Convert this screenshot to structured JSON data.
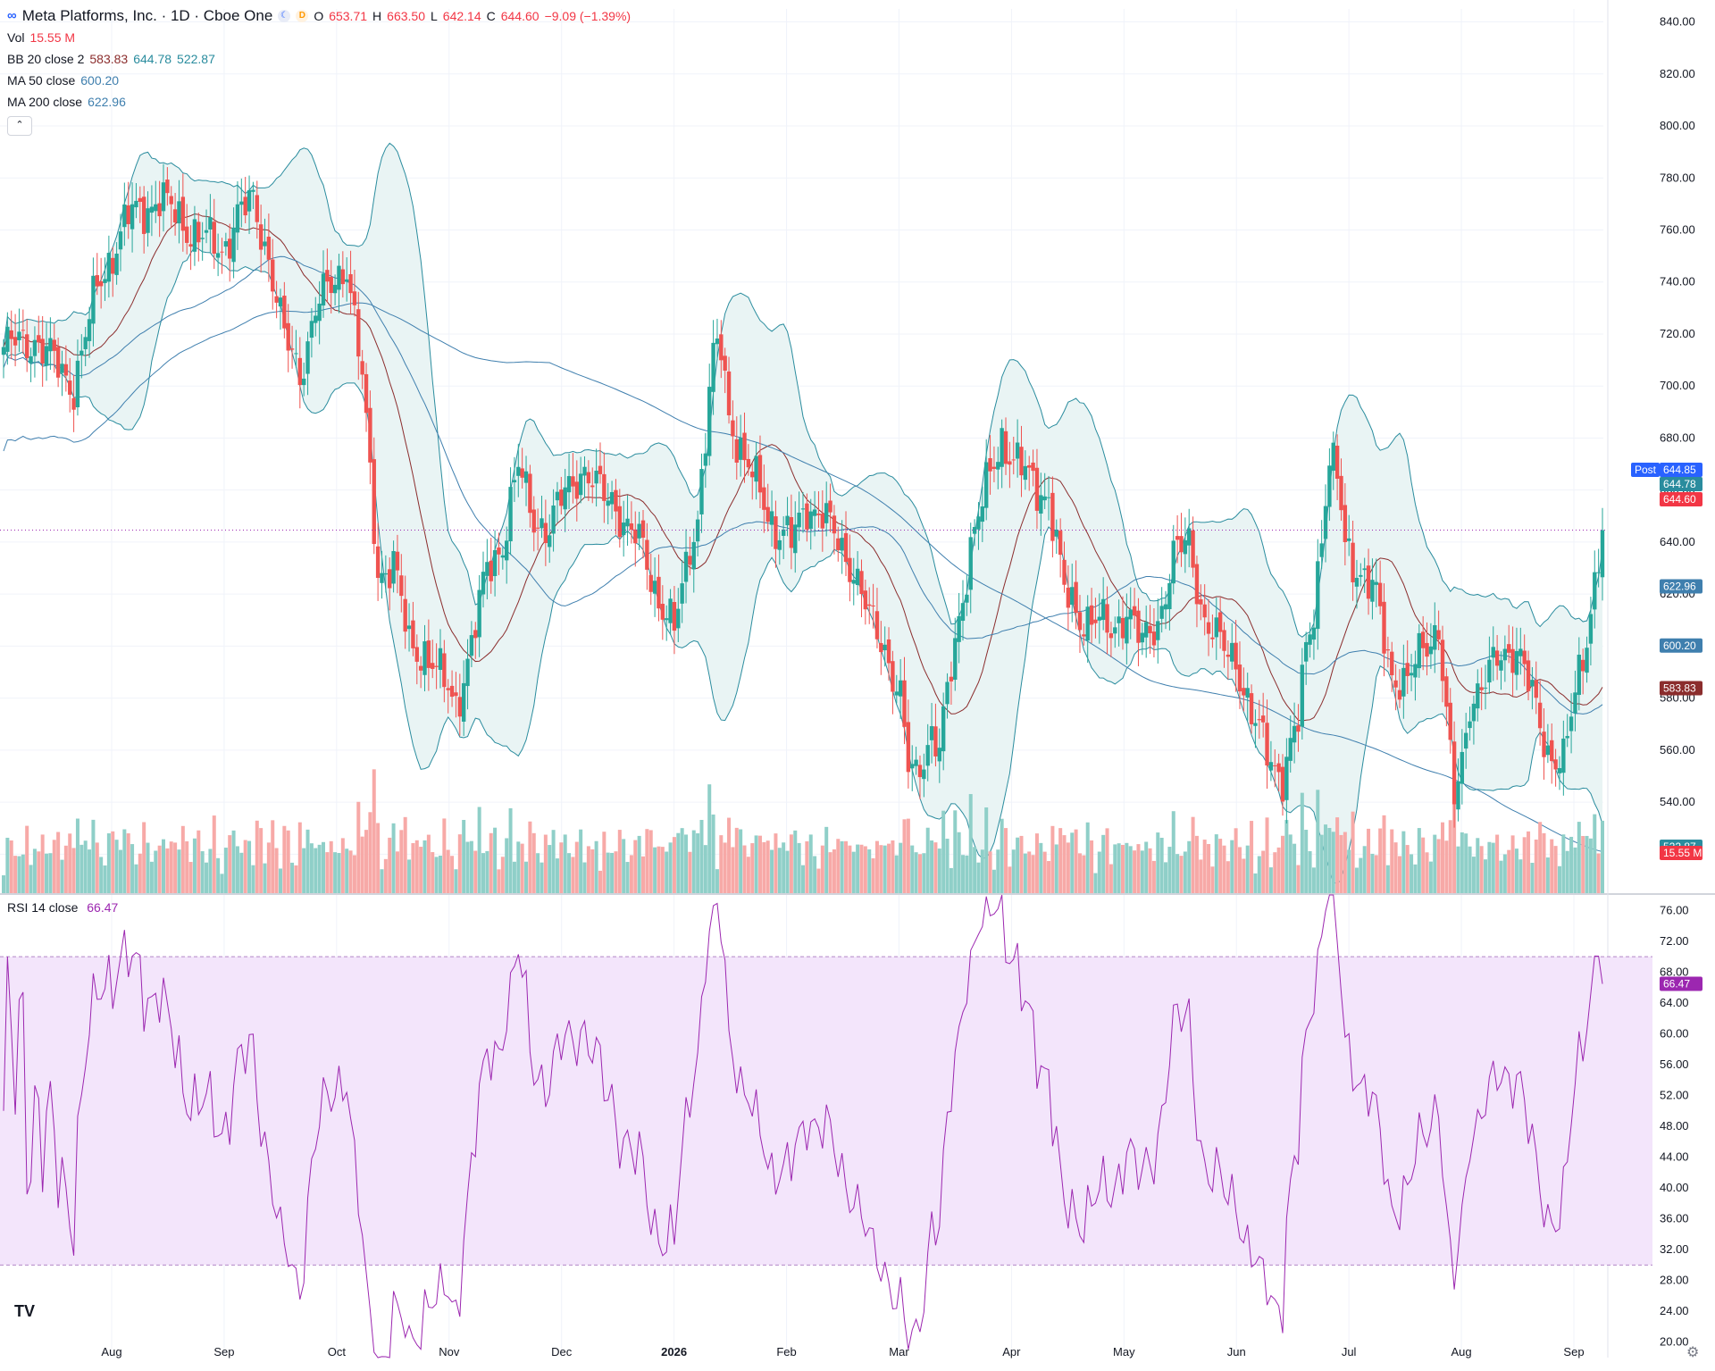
{
  "legend": {
    "title": "Meta Platforms, Inc. · 1D · Cboe One",
    "open_label": "O",
    "open": "653.71",
    "high_label": "H",
    "high": "663.50",
    "low_label": "L",
    "low": "642.14",
    "close_label": "C",
    "close": "644.60",
    "change": "−9.09 (−1.39%)",
    "vol_label": "Vol",
    "vol_value": "15.55 M",
    "bb_label": "BB 20 close 2",
    "bb_basis": "583.83",
    "bb_upper": "644.78",
    "bb_lower": "522.87",
    "ma50_label": "MA 50 close",
    "ma50_value": "600.20",
    "ma200_label": "MA 200 close",
    "ma200_value": "622.96",
    "collapse_glyph": "⌃"
  },
  "rsi_legend": {
    "label": "RSI 14 close",
    "value": "66.47"
  },
  "price_tags": {
    "post_label": "Post",
    "post_value": "644.85",
    "bb_upper": "644.78",
    "last": "644.60",
    "ma200": "622.96",
    "ma50": "600.20",
    "bb_basis": "583.83",
    "bb_lower": "522.87",
    "volume": "15.55 M",
    "rsi": "66.47"
  },
  "colors": {
    "up": "#26a69a",
    "down": "#ef5350",
    "up_volume": "#8fcfc8",
    "down_volume": "#f7a9a7",
    "bb_band": "#2a8c9e",
    "bb_fill": "#e9f4f4",
    "bb_basis": "#8b2d2d",
    "ma50": "#3f7fae",
    "ma200": "#3f7fae",
    "rsi_line": "#9c27b0",
    "rsi_fill": "#f3e5fb",
    "post_tag": "#2962ff",
    "last_tag": "#f23645"
  },
  "icons": {
    "logo": "tradingview-logo-icon",
    "settings": "settings-icon",
    "meta_logo": "meta-logo-icon"
  },
  "chart_data": [
    {
      "type": "candlestick",
      "title": "Meta Platforms, Inc. · 1D · Cboe One",
      "price_ticks": [
        "840.00",
        "820.00",
        "800.00",
        "780.00",
        "760.00",
        "740.00",
        "720.00",
        "700.00",
        "680.00",
        "660.00",
        "640.00",
        "620.00",
        "600.00",
        "580.00",
        "560.00",
        "540.00",
        "520.00"
      ],
      "ylim": [
        505,
        845
      ],
      "x_ticks": [
        "Aug",
        "Sep",
        "Oct",
        "Nov",
        "Dec",
        "2026",
        "Feb",
        "Mar",
        "Apr",
        "May",
        "Jun",
        "Jul",
        "Aug",
        "Sep"
      ],
      "anchors": [
        [
          0,
          715
        ],
        [
          8,
          718
        ],
        [
          18,
          700
        ],
        [
          24,
          738
        ],
        [
          32,
          765
        ],
        [
          40,
          772
        ],
        [
          48,
          760
        ],
        [
          56,
          752
        ],
        [
          60,
          766
        ],
        [
          64,
          770
        ],
        [
          68,
          750
        ],
        [
          72,
          718
        ],
        [
          76,
          705
        ],
        [
          80,
          730
        ],
        [
          84,
          738
        ],
        [
          88,
          748
        ],
        [
          92,
          702
        ],
        [
          96,
          628
        ],
        [
          100,
          632
        ],
        [
          104,
          600
        ],
        [
          108,
          598
        ],
        [
          112,
          588
        ],
        [
          116,
          578
        ],
        [
          120,
          600
        ],
        [
          124,
          630
        ],
        [
          128,
          640
        ],
        [
          132,
          668
        ],
        [
          136,
          650
        ],
        [
          140,
          644
        ],
        [
          144,
          660
        ],
        [
          148,
          668
        ],
        [
          152,
          660
        ],
        [
          156,
          658
        ],
        [
          160,
          644
        ],
        [
          164,
          638
        ],
        [
          168,
          618
        ],
        [
          172,
          605
        ],
        [
          176,
          640
        ],
        [
          178,
          650
        ],
        [
          182,
          710
        ],
        [
          184,
          716
        ],
        [
          186,
          690
        ],
        [
          190,
          670
        ],
        [
          194,
          660
        ],
        [
          198,
          645
        ],
        [
          202,
          640
        ],
        [
          206,
          655
        ],
        [
          210,
          650
        ],
        [
          214,
          640
        ],
        [
          218,
          630
        ],
        [
          222,
          610
        ],
        [
          226,
          600
        ],
        [
          230,
          580
        ],
        [
          232,
          552
        ],
        [
          234,
          550
        ],
        [
          238,
          568
        ],
        [
          240,
          560
        ],
        [
          244,
          600
        ],
        [
          248,
          640
        ],
        [
          252,
          660
        ],
        [
          256,
          680
        ],
        [
          260,
          670
        ],
        [
          264,
          662
        ],
        [
          268,
          658
        ],
        [
          272,
          620
        ],
        [
          276,
          612
        ],
        [
          280,
          610
        ],
        [
          284,
          605
        ],
        [
          288,
          615
        ],
        [
          292,
          600
        ],
        [
          296,
          610
        ],
        [
          300,
          634
        ],
        [
          304,
          640
        ],
        [
          308,
          610
        ],
        [
          312,
          600
        ],
        [
          316,
          596
        ],
        [
          320,
          572
        ],
        [
          324,
          560
        ],
        [
          328,
          550
        ],
        [
          332,
          570
        ],
        [
          334,
          600
        ],
        [
          336,
          616
        ],
        [
          340,
          670
        ],
        [
          342,
          664
        ],
        [
          344,
          640
        ],
        [
          348,
          628
        ],
        [
          352,
          618
        ],
        [
          356,
          590
        ],
        [
          360,
          585
        ],
        [
          364,
          600
        ],
        [
          368,
          608
        ],
        [
          370,
          572
        ],
        [
          372,
          540
        ],
        [
          374,
          555
        ],
        [
          376,
          580
        ],
        [
          380,
          586
        ],
        [
          384,
          597
        ],
        [
          388,
          600
        ],
        [
          392,
          580
        ],
        [
          396,
          560
        ],
        [
          400,
          555
        ],
        [
          402,
          572
        ],
        [
          404,
          590
        ],
        [
          406,
          605
        ],
        [
          408,
          625
        ],
        [
          410,
          644.6
        ]
      ],
      "volume_ylim": [
        0,
        100
      ],
      "volume_tag": "15.55 M"
    },
    {
      "type": "line",
      "title": "RSI 14 close",
      "ylim": [
        18,
        78
      ],
      "y_ticks": [
        "76.00",
        "72.00",
        "68.00",
        "64.00",
        "60.00",
        "56.00",
        "52.00",
        "48.00",
        "44.00",
        "40.00",
        "36.00",
        "32.00",
        "28.00",
        "24.00",
        "20.00"
      ],
      "bands": [
        30,
        70
      ],
      "last_value": 66.47
    }
  ]
}
